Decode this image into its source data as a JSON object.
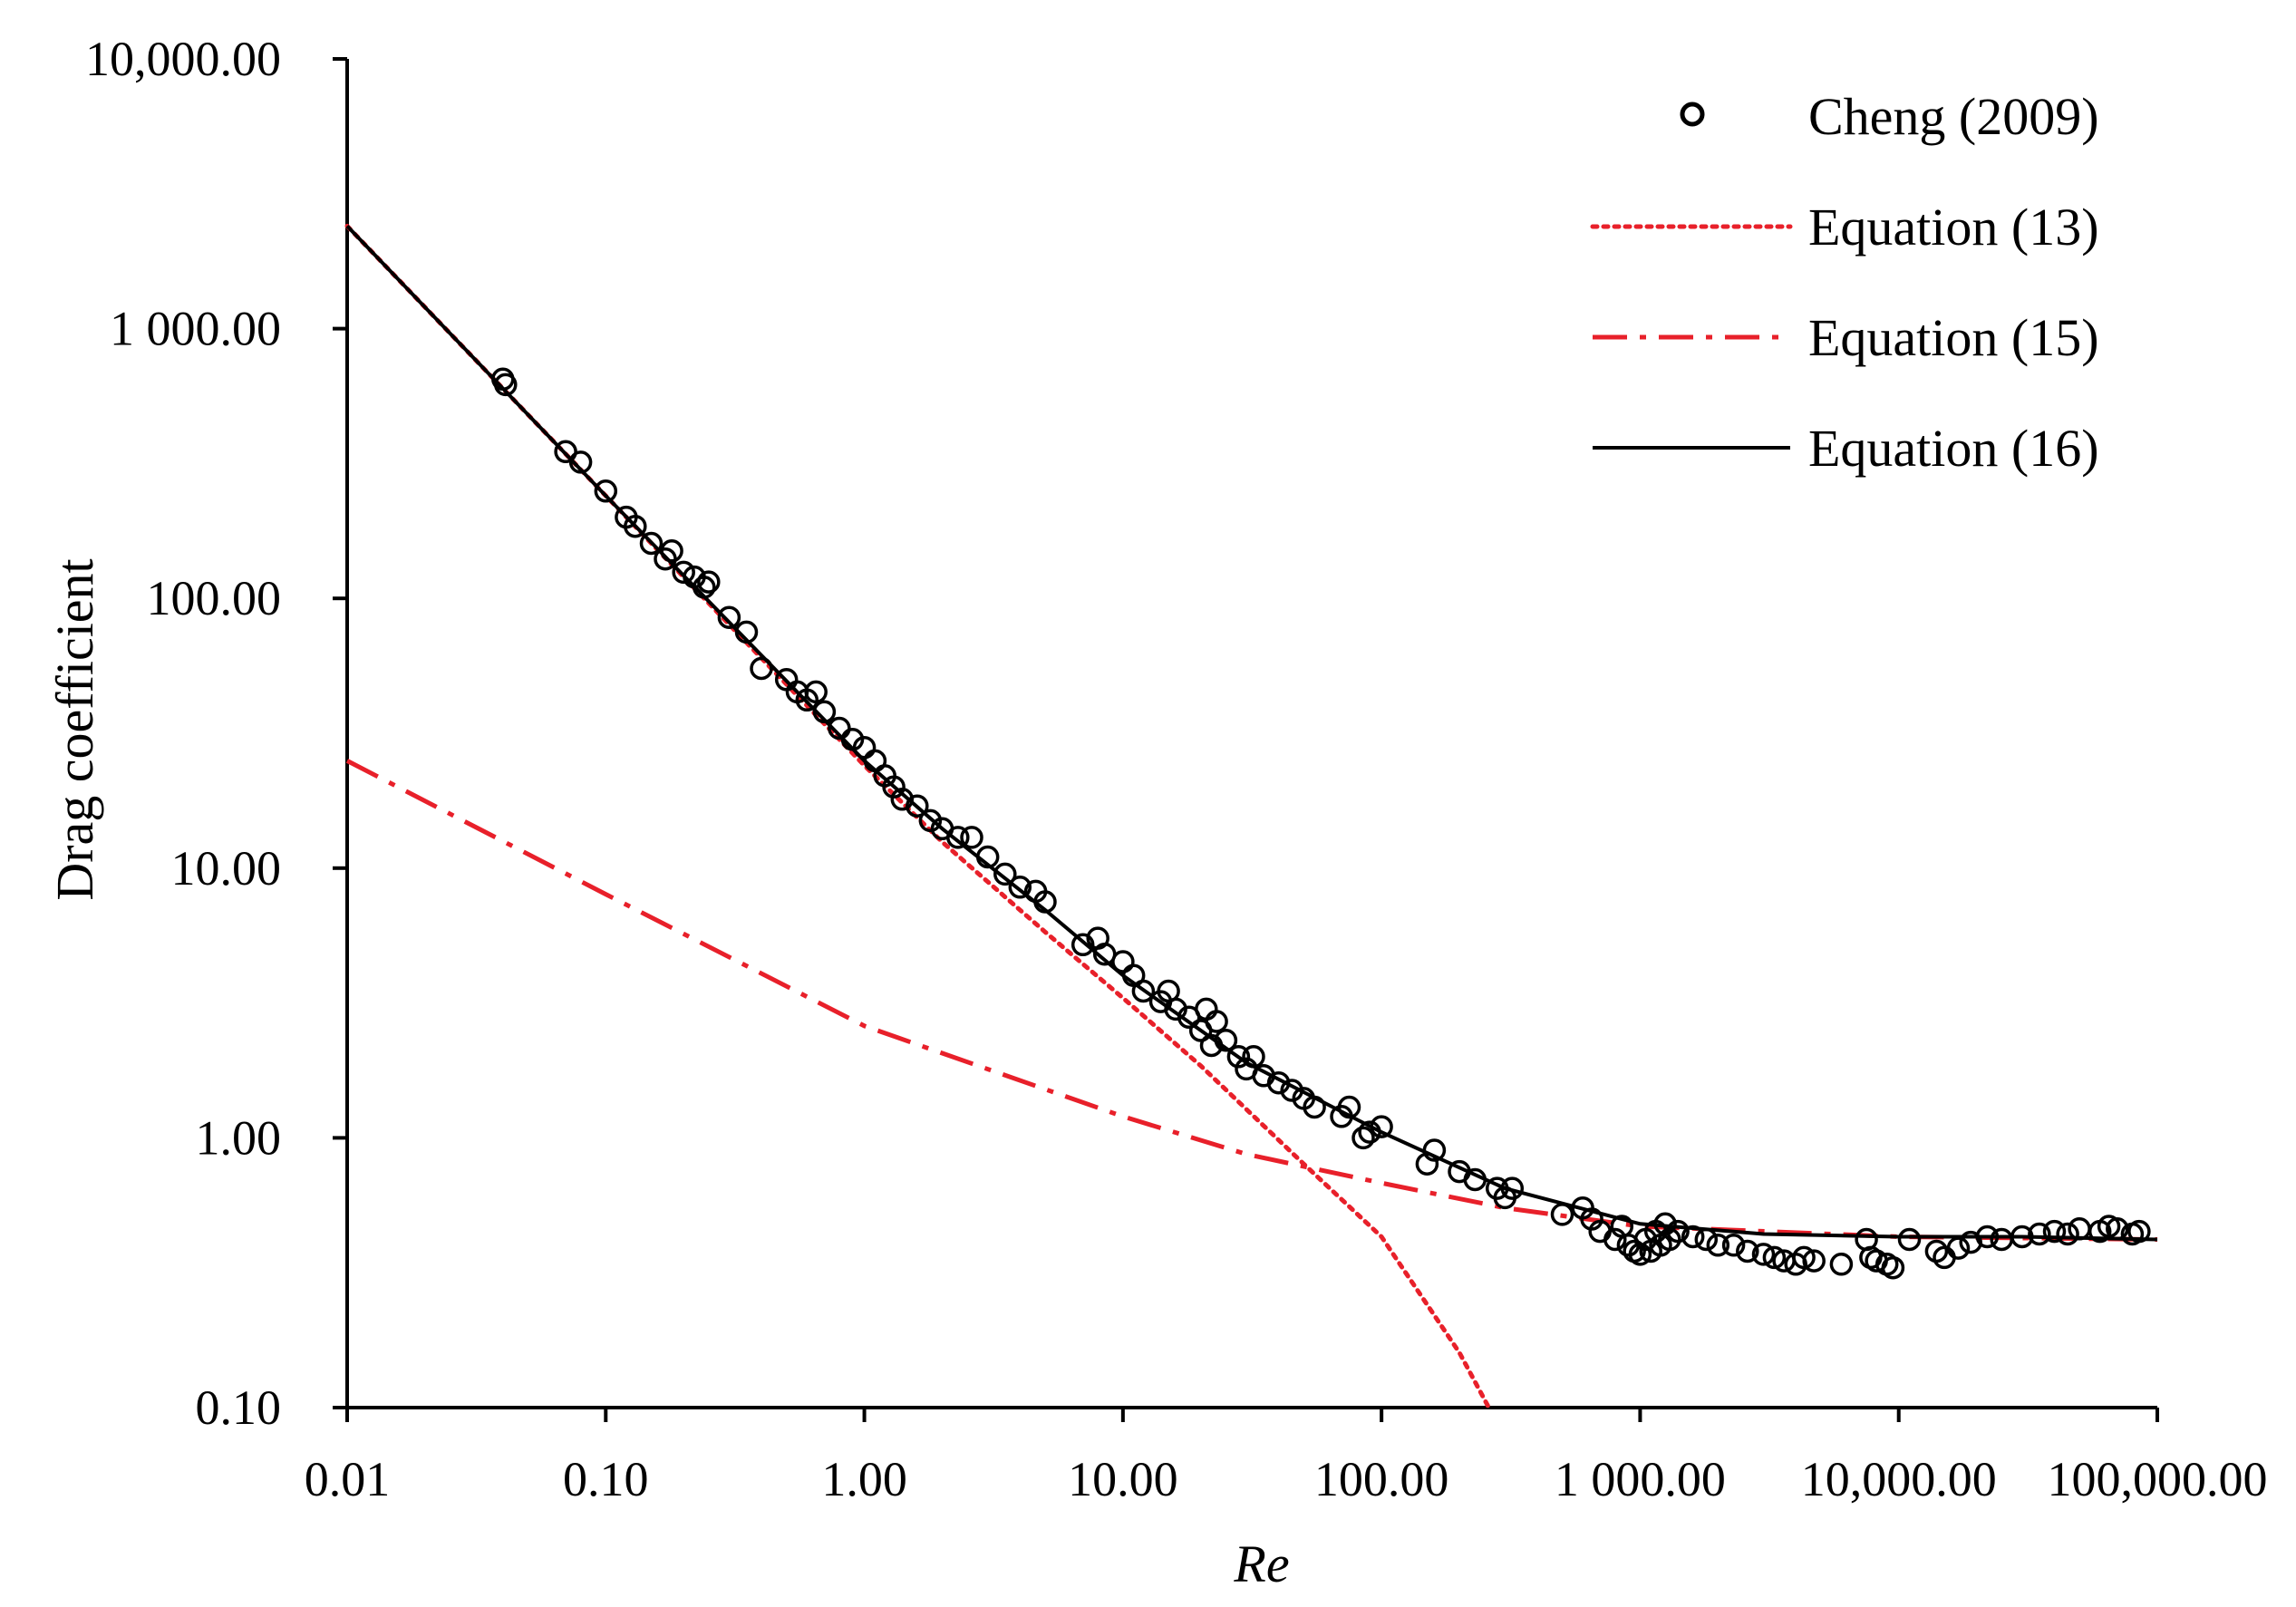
{
  "chart_data": {
    "type": "scatter",
    "title": "",
    "xlabel": "Re",
    "ylabel": "Drag coefficient",
    "xscale": "log",
    "yscale": "log",
    "xlim": [
      0.01,
      100000
    ],
    "ylim": [
      0.1,
      10000
    ],
    "x_tick_values": [
      0.01,
      0.1,
      1,
      10,
      100,
      1000,
      10000,
      100000
    ],
    "x_tick_labels": [
      "0.01",
      "0.10",
      "1.00",
      "10.00",
      "100.00",
      "1 000.00",
      "10,000.00",
      "100,000.00"
    ],
    "y_tick_values": [
      0.1,
      1,
      10,
      100,
      1000,
      10000
    ],
    "y_tick_labels": [
      "0.10",
      "1.00",
      "10.00",
      "100.00",
      "1 000.00",
      "10,000.00"
    ],
    "legend_position": "top-right",
    "colors": {
      "data": "#000000",
      "eq13": "#e8202a",
      "eq15": "#e8202a",
      "eq16": "#000000"
    },
    "series": [
      {
        "name": "Cheng (2009)",
        "kind": "points",
        "marker": "open-circle",
        "points": [
          [
            0.04,
            650
          ],
          [
            0.041,
            620
          ],
          [
            0.07,
            350
          ],
          [
            0.08,
            320
          ],
          [
            0.1,
            250
          ],
          [
            0.12,
            200
          ],
          [
            0.13,
            185
          ],
          [
            0.15,
            160
          ],
          [
            0.17,
            140
          ],
          [
            0.18,
            150
          ],
          [
            0.2,
            125
          ],
          [
            0.22,
            120
          ],
          [
            0.24,
            110
          ],
          [
            0.25,
            115
          ],
          [
            0.3,
            85
          ],
          [
            0.35,
            75
          ],
          [
            0.4,
            55
          ],
          [
            0.5,
            50
          ],
          [
            0.55,
            45
          ],
          [
            0.6,
            42
          ],
          [
            0.65,
            45
          ],
          [
            0.7,
            38
          ],
          [
            0.8,
            33
          ],
          [
            0.9,
            30
          ],
          [
            1,
            28
          ],
          [
            1.1,
            25
          ],
          [
            1.2,
            22
          ],
          [
            1.3,
            20
          ],
          [
            1.4,
            18
          ],
          [
            1.6,
            17
          ],
          [
            1.8,
            15
          ],
          [
            2,
            14
          ],
          [
            2.3,
            13
          ],
          [
            2.6,
            13
          ],
          [
            3,
            11
          ],
          [
            3.5,
            9.5
          ],
          [
            4,
            8.5
          ],
          [
            4.6,
            8.2
          ],
          [
            5,
            7.5
          ],
          [
            7,
            5.2
          ],
          [
            8,
            5.5
          ],
          [
            8.5,
            4.8
          ],
          [
            10,
            4.5
          ],
          [
            11,
            4
          ],
          [
            12,
            3.5
          ],
          [
            14,
            3.2
          ],
          [
            15,
            3.5
          ],
          [
            16,
            3
          ],
          [
            18,
            2.8
          ],
          [
            20,
            2.5
          ],
          [
            21,
            3
          ],
          [
            22,
            2.2
          ],
          [
            23,
            2.7
          ],
          [
            25,
            2.3
          ],
          [
            28,
            2
          ],
          [
            30,
            1.8
          ],
          [
            32,
            2
          ],
          [
            35,
            1.7
          ],
          [
            40,
            1.6
          ],
          [
            45,
            1.5
          ],
          [
            50,
            1.4
          ],
          [
            55,
            1.3
          ],
          [
            70,
            1.2
          ],
          [
            75,
            1.3
          ],
          [
            85,
            1
          ],
          [
            90,
            1.05
          ],
          [
            100,
            1.1
          ],
          [
            150,
            0.8
          ],
          [
            160,
            0.9
          ],
          [
            200,
            0.75
          ],
          [
            230,
            0.7
          ],
          [
            280,
            0.65
          ],
          [
            300,
            0.6
          ],
          [
            320,
            0.65
          ],
          [
            500,
            0.52
          ],
          [
            600,
            0.55
          ],
          [
            650,
            0.5
          ],
          [
            700,
            0.45
          ],
          [
            800,
            0.42
          ],
          [
            850,
            0.47
          ],
          [
            900,
            0.4
          ],
          [
            950,
            0.38
          ],
          [
            1000,
            0.37
          ],
          [
            1050,
            0.42
          ],
          [
            1100,
            0.38
          ],
          [
            1150,
            0.45
          ],
          [
            1200,
            0.4
          ],
          [
            1250,
            0.48
          ],
          [
            1300,
            0.42
          ],
          [
            1400,
            0.45
          ],
          [
            1600,
            0.43
          ],
          [
            1800,
            0.42
          ],
          [
            2000,
            0.4
          ],
          [
            2300,
            0.4
          ],
          [
            2600,
            0.38
          ],
          [
            3000,
            0.37
          ],
          [
            3300,
            0.36
          ],
          [
            3600,
            0.35
          ],
          [
            4000,
            0.34
          ],
          [
            4300,
            0.36
          ],
          [
            4700,
            0.35
          ],
          [
            6000,
            0.34
          ],
          [
            7500,
            0.42
          ],
          [
            7800,
            0.36
          ],
          [
            8200,
            0.35
          ],
          [
            9000,
            0.34
          ],
          [
            9500,
            0.33
          ],
          [
            11000,
            0.42
          ],
          [
            14000,
            0.38
          ],
          [
            15000,
            0.36
          ],
          [
            17000,
            0.39
          ],
          [
            19000,
            0.41
          ],
          [
            22000,
            0.43
          ],
          [
            25000,
            0.42
          ],
          [
            30000,
            0.43
          ],
          [
            35000,
            0.44
          ],
          [
            40000,
            0.45
          ],
          [
            45000,
            0.44
          ],
          [
            50000,
            0.46
          ],
          [
            60000,
            0.45
          ],
          [
            65000,
            0.47
          ],
          [
            70000,
            0.46
          ],
          [
            80000,
            0.44
          ],
          [
            85000,
            0.45
          ]
        ]
      },
      {
        "name": "Equation (13)",
        "kind": "line",
        "dash": "dotted",
        "points": [
          [
            0.01,
            2400
          ],
          [
            0.1,
            240
          ],
          [
            1,
            24
          ],
          [
            2,
            12.5
          ],
          [
            5,
            5.8
          ],
          [
            10,
            3.3
          ],
          [
            20,
            1.85
          ],
          [
            50,
            0.8
          ],
          [
            100,
            0.43
          ],
          [
            200,
            0.16
          ],
          [
            260,
            0.1
          ]
        ]
      },
      {
        "name": "Equation (15)",
        "kind": "line",
        "dash": "dash-dot",
        "points": [
          [
            0.01,
            25
          ],
          [
            0.1,
            8
          ],
          [
            1,
            2.6
          ],
          [
            10,
            1.2
          ],
          [
            30,
            0.87
          ],
          [
            100,
            0.68
          ],
          [
            300,
            0.55
          ],
          [
            1000,
            0.47
          ],
          [
            10000,
            0.43
          ],
          [
            100000,
            0.42
          ]
        ]
      },
      {
        "name": "Equation (16)",
        "kind": "line",
        "dash": "solid",
        "points": [
          [
            0.01,
            2400
          ],
          [
            0.1,
            240
          ],
          [
            1,
            25
          ],
          [
            2,
            14
          ],
          [
            5,
            7
          ],
          [
            10,
            4
          ],
          [
            30,
            1.9
          ],
          [
            100,
            1.05
          ],
          [
            300,
            0.65
          ],
          [
            1000,
            0.48
          ],
          [
            3000,
            0.44
          ],
          [
            10000,
            0.43
          ],
          [
            30000,
            0.43
          ],
          [
            100000,
            0.42
          ]
        ]
      }
    ]
  }
}
